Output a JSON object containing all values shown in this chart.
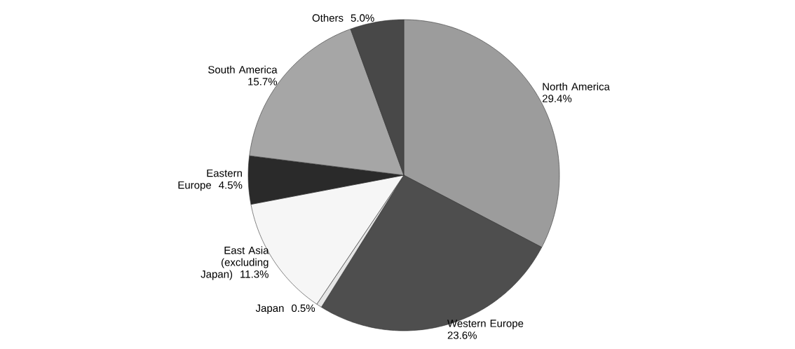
{
  "chart_data": {
    "type": "pie",
    "categories": [
      "North America",
      "Western Europe",
      "Japan",
      "East Asia (excluding Japan)",
      "Eastern Europe",
      "South America",
      "Others"
    ],
    "values": [
      29.4,
      23.6,
      0.5,
      11.3,
      4.5,
      15.7,
      5.0
    ],
    "value_labels": [
      "29.4%",
      "23.6%",
      "0.5%",
      "11.3%",
      "4.5%",
      "15.7%",
      "5.0%"
    ],
    "colors": [
      "#9c9c9c",
      "#4e4e4e",
      "#e6e6e6",
      "#f6f6f6",
      "#2a2a2a",
      "#a6a6a6",
      "#484848"
    ]
  }
}
